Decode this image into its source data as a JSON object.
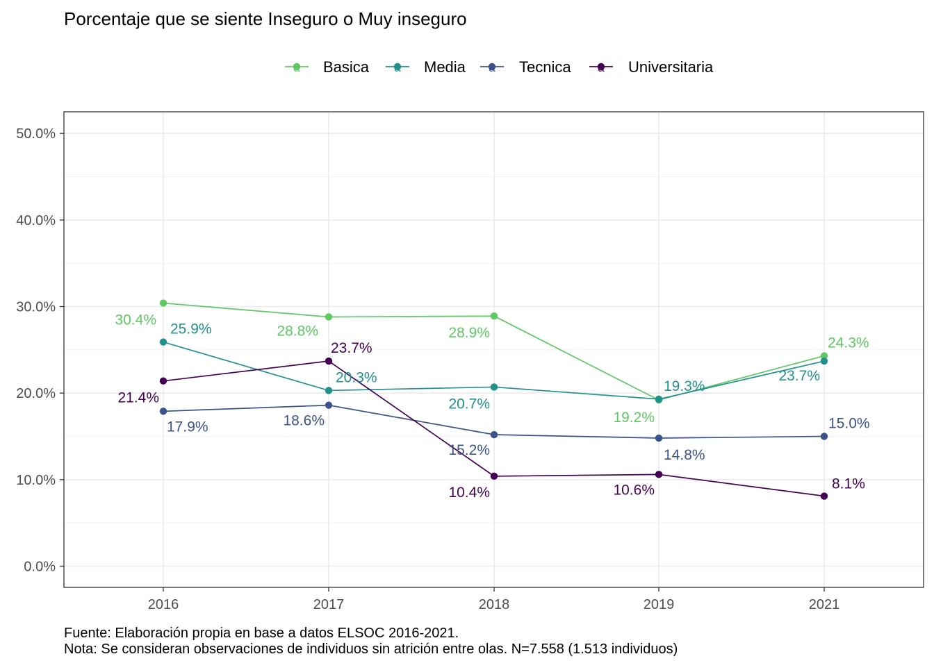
{
  "chart_data": {
    "type": "line",
    "title": "Porcentaje que se siente Inseguro o Muy inseguro",
    "xlabel": "",
    "ylabel": "",
    "categories": [
      "2016",
      "2017",
      "2018",
      "2019",
      "2021"
    ],
    "ylim": [
      0,
      0.5
    ],
    "y_ticks": [
      0,
      0.1,
      0.2,
      0.3,
      0.4,
      0.5
    ],
    "y_tick_labels": [
      "0.0%",
      "10.0%",
      "20.0%",
      "30.0%",
      "40.0%",
      "50.0%"
    ],
    "grid": true,
    "legend_position": "top",
    "legend_key_glyph": "a",
    "series": [
      {
        "name": "Basica",
        "color": "#5ec962",
        "values": [
          0.304,
          0.288,
          0.289,
          0.192,
          0.243
        ],
        "labels": [
          "30.4%",
          "28.8%",
          "28.9%",
          "19.2%",
          "24.3%"
        ]
      },
      {
        "name": "Media",
        "color": "#21918c",
        "values": [
          0.259,
          0.203,
          0.207,
          0.193,
          0.237
        ],
        "labels": [
          "25.9%",
          "20.3%",
          "20.7%",
          "19.3%",
          "23.7%"
        ]
      },
      {
        "name": "Tecnica",
        "color": "#3b528b",
        "values": [
          0.179,
          0.186,
          0.152,
          0.148,
          0.15
        ],
        "labels": [
          "17.9%",
          "18.6%",
          "15.2%",
          "14.8%",
          "15.0%"
        ]
      },
      {
        "name": "Universitaria",
        "color": "#440154",
        "values": [
          0.214,
          0.237,
          0.104,
          0.106,
          0.081
        ],
        "labels": [
          "21.4%",
          "23.7%",
          "10.4%",
          "10.6%",
          "8.1%"
        ]
      }
    ],
    "caption_lines": [
      "Fuente: Elaboración propia en base a datos ELSOC 2016-2021.",
      "Nota: Se consideran observaciones de individuos sin atrición entre olas. N=7.558 (1.513 individuos)"
    ]
  }
}
